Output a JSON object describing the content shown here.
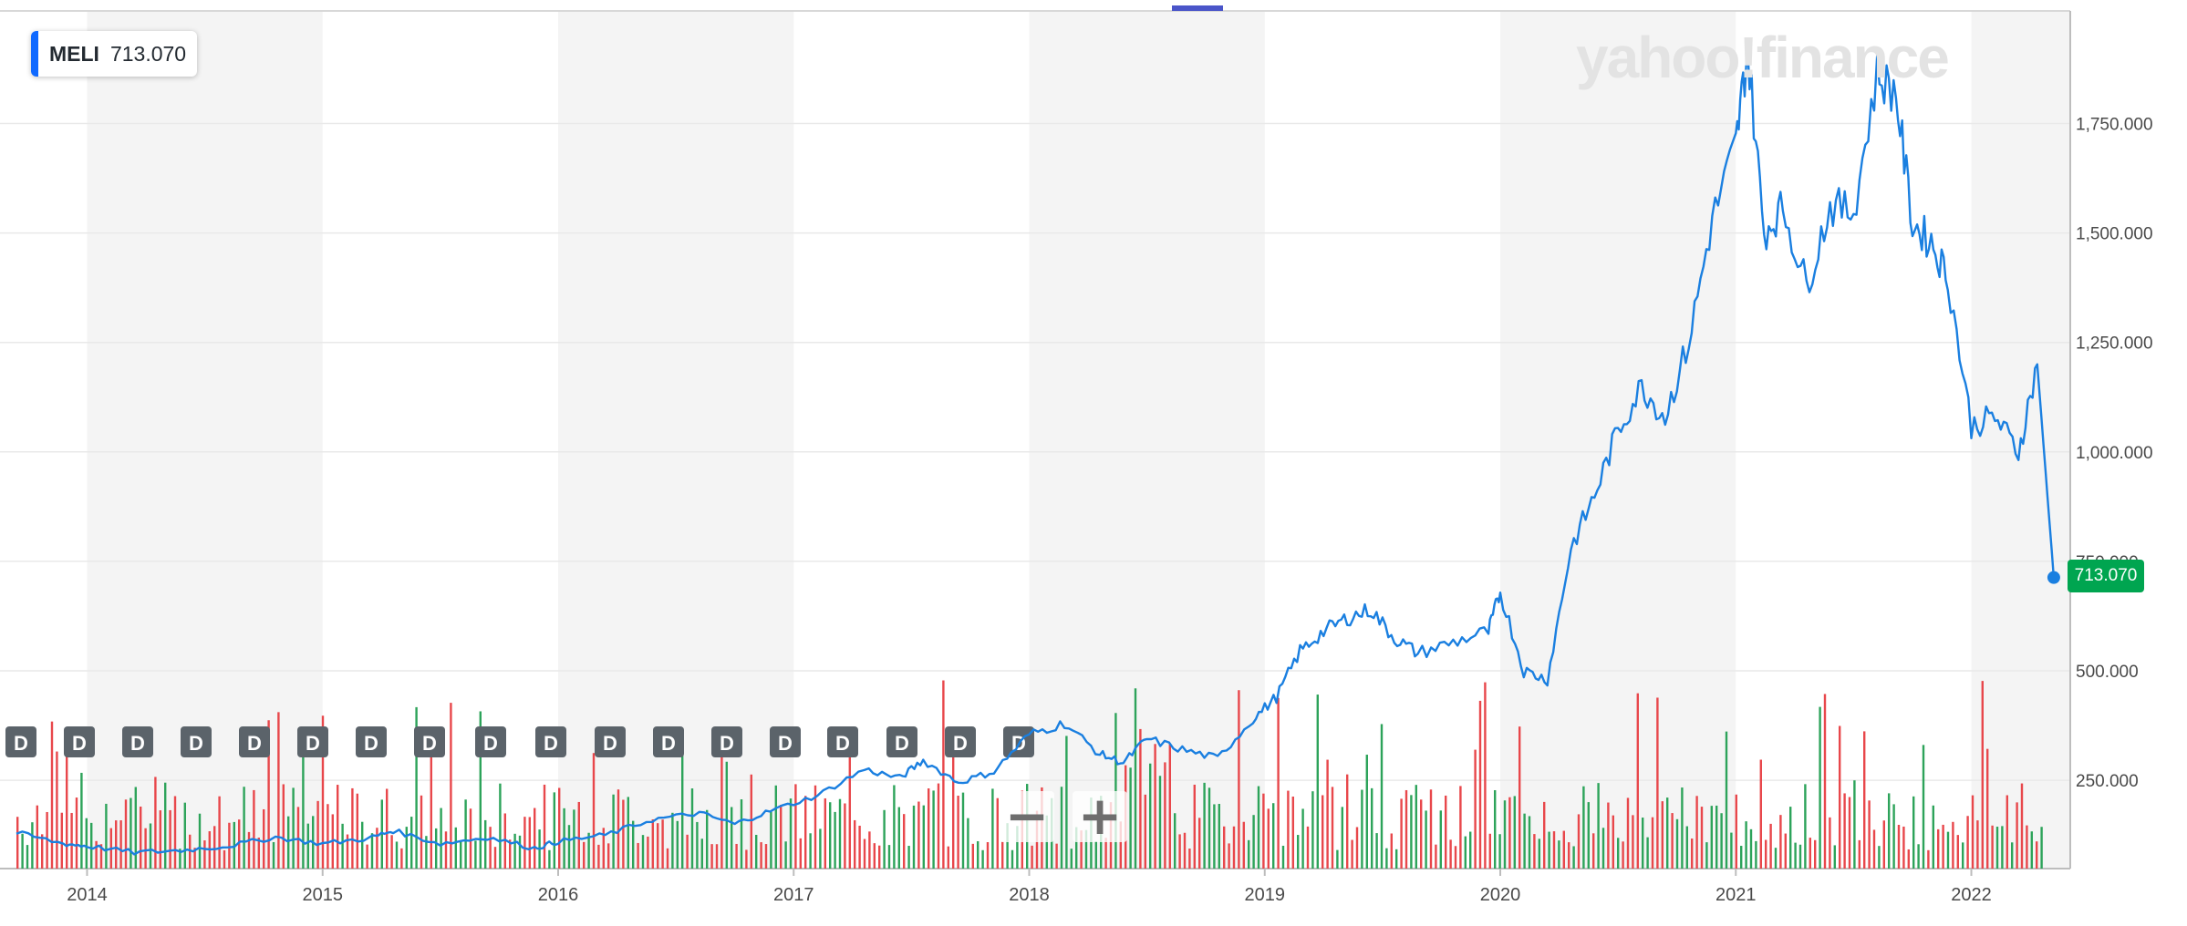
{
  "ticker": {
    "symbol": "MELI",
    "price": "713.070"
  },
  "watermark": "yahoo!finance",
  "last_price_label": "713.070",
  "zoom": {
    "out": "−",
    "in": "+"
  },
  "dividend_marker_label": "D",
  "colors": {
    "line": "#1a7fe0",
    "volume_up": "#2da35a",
    "volume_down": "#e8474b",
    "last_price_bg": "#00a550",
    "band": "#f4f4f4",
    "grid": "#e9e9e9",
    "badge_accent": "#0f69ff"
  },
  "chart_data": {
    "type": "line",
    "title": "MELI",
    "y_axis": {
      "ticks": [
        250,
        500,
        750,
        1000,
        1250,
        1500,
        1750
      ],
      "tick_labels": [
        "250.000",
        "500.000",
        "750.000",
        "1,000.000",
        "1,250.000",
        "1,500.000",
        "1,750.000"
      ],
      "position": "right"
    },
    "x_axis": {
      "ticks": [
        "2014",
        "2015",
        "2016",
        "2017",
        "2018",
        "2019",
        "2020",
        "2021",
        "2022"
      ]
    },
    "series": [
      {
        "name": "MELI",
        "x": [
          2013.7,
          2013.9,
          2014.0,
          2014.2,
          2014.4,
          2014.6,
          2014.8,
          2015.0,
          2015.2,
          2015.3,
          2015.5,
          2015.7,
          2015.9,
          2016.0,
          2016.2,
          2016.4,
          2016.6,
          2016.75,
          2016.9,
          2017.1,
          2017.3,
          2017.45,
          2017.55,
          2017.7,
          2017.85,
          2018.0,
          2018.15,
          2018.3,
          2018.4,
          2018.5,
          2018.65,
          2018.8,
          2018.95,
          2019.05,
          2019.15,
          2019.25,
          2019.35,
          2019.45,
          2019.55,
          2019.65,
          2019.8,
          2019.95,
          2020.0,
          2020.1,
          2020.2,
          2020.3,
          2020.4,
          2020.5,
          2020.6,
          2020.7,
          2020.8,
          2020.9,
          2021.0,
          2021.05,
          2021.12,
          2021.2,
          2021.3,
          2021.4,
          2021.5,
          2021.6,
          2021.68,
          2021.75,
          2021.83,
          2021.9,
          2022.0,
          2022.1,
          2022.2,
          2022.28,
          2022.35
        ],
        "values": [
          130,
          105,
          100,
          85,
          90,
          100,
          120,
          105,
          118,
          135,
          105,
          120,
          95,
          110,
          125,
          160,
          175,
          150,
          180,
          215,
          275,
          255,
          295,
          245,
          270,
          355,
          380,
          310,
          290,
          345,
          320,
          300,
          390,
          440,
          545,
          590,
          620,
          640,
          575,
          540,
          565,
          590,
          680,
          500,
          480,
          780,
          900,
          1050,
          1150,
          1080,
          1250,
          1530,
          1700,
          1920,
          1500,
          1560,
          1380,
          1560,
          1550,
          1860,
          1820,
          1520,
          1480,
          1400,
          1060,
          1080,
          1000,
          1200,
          713.07
        ]
      }
    ],
    "volume": {
      "description_units": "relative bars along x range",
      "up_color": "green",
      "down_color": "red"
    },
    "last_value": 713.07,
    "grid": true,
    "legend": "top-left"
  }
}
